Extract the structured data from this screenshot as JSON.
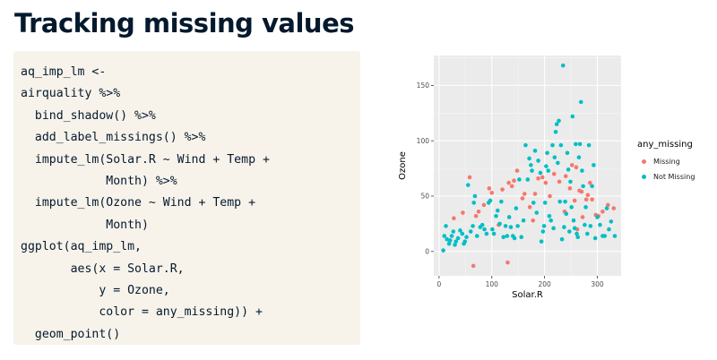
{
  "slide": {
    "title": "Tracking missing values"
  },
  "code": {
    "lines": [
      "aq_imp_lm <-",
      "airquality %>%",
      "  bind_shadow() %>%",
      "  add_label_missings() %>%",
      "  impute_lm(Solar.R ~ Wind + Temp +",
      "            Month) %>%",
      "  impute_lm(Ozone ~ Wind + Temp +",
      "            Month)",
      "ggplot(aq_imp_lm,",
      "       aes(x = Solar.R,",
      "           y = Ozone,",
      "           color = any_missing)) +",
      "  geom_point()"
    ]
  },
  "chart_data": {
    "type": "scatter",
    "xlabel": "Solar.R",
    "ylabel": "Ozone",
    "xlim": [
      -10,
      345
    ],
    "ylim": [
      -22,
      177
    ],
    "x_ticks": [
      0,
      100,
      200,
      300
    ],
    "y_ticks": [
      0,
      50,
      100,
      150
    ],
    "grid": true,
    "legend": {
      "title": "any_missing",
      "position": "right"
    },
    "series": [
      {
        "name": "Missing",
        "color": "#f8766d",
        "points": [
          [
            58,
            67
          ],
          [
            70,
            32
          ],
          [
            28,
            30
          ],
          [
            45,
            35
          ],
          [
            65,
            -13
          ],
          [
            75,
            36
          ],
          [
            85,
            42
          ],
          [
            95,
            57
          ],
          [
            100,
            53
          ],
          [
            113,
            24
          ],
          [
            120,
            56
          ],
          [
            132,
            62
          ],
          [
            130,
            -10
          ],
          [
            138,
            59
          ],
          [
            142,
            64
          ],
          [
            148,
            73
          ],
          [
            158,
            48
          ],
          [
            162,
            52
          ],
          [
            172,
            40
          ],
          [
            178,
            28
          ],
          [
            182,
            52
          ],
          [
            188,
            66
          ],
          [
            196,
            67
          ],
          [
            202,
            62
          ],
          [
            210,
            50
          ],
          [
            218,
            70
          ],
          [
            228,
            63
          ],
          [
            238,
            36
          ],
          [
            240,
            68
          ],
          [
            248,
            57
          ],
          [
            252,
            78
          ],
          [
            257,
            46
          ],
          [
            260,
            76
          ],
          [
            262,
            20
          ],
          [
            266,
            55
          ],
          [
            270,
            54
          ],
          [
            272,
            31
          ],
          [
            279,
            47
          ],
          [
            282,
            51
          ],
          [
            286,
            62
          ],
          [
            290,
            47
          ],
          [
            297,
            33
          ],
          [
            302,
            32
          ],
          [
            310,
            36
          ],
          [
            320,
            42
          ],
          [
            331,
            39
          ]
        ]
      },
      {
        "name": "Not Missing",
        "color": "#00bfc4",
        "points": [
          [
            8,
            1
          ],
          [
            10,
            14
          ],
          [
            13,
            23
          ],
          [
            15,
            11
          ],
          [
            19,
            7
          ],
          [
            21,
            10
          ],
          [
            24,
            14
          ],
          [
            27,
            18
          ],
          [
            30,
            6
          ],
          [
            32,
            9
          ],
          [
            36,
            12
          ],
          [
            40,
            19
          ],
          [
            44,
            16
          ],
          [
            47,
            7
          ],
          [
            49,
            9
          ],
          [
            52,
            13
          ],
          [
            55,
            60
          ],
          [
            60,
            18
          ],
          [
            64,
            23
          ],
          [
            66,
            44
          ],
          [
            68,
            50
          ],
          [
            72,
            14
          ],
          [
            78,
            22
          ],
          [
            82,
            24
          ],
          [
            86,
            20
          ],
          [
            90,
            16
          ],
          [
            94,
            44
          ],
          [
            97,
            46
          ],
          [
            101,
            20
          ],
          [
            104,
            16
          ],
          [
            108,
            32
          ],
          [
            111,
            37
          ],
          [
            115,
            25
          ],
          [
            118,
            45
          ],
          [
            122,
            13
          ],
          [
            126,
            23
          ],
          [
            129,
            14
          ],
          [
            133,
            31
          ],
          [
            136,
            22
          ],
          [
            140,
            14
          ],
          [
            143,
            12
          ],
          [
            146,
            39
          ],
          [
            149,
            23
          ],
          [
            152,
            65
          ],
          [
            156,
            13
          ],
          [
            160,
            28
          ],
          [
            164,
            96
          ],
          [
            168,
            65
          ],
          [
            171,
            84
          ],
          [
            174,
            78
          ],
          [
            176,
            73
          ],
          [
            179,
            44
          ],
          [
            182,
            91
          ],
          [
            185,
            35
          ],
          [
            188,
            82
          ],
          [
            192,
            71
          ],
          [
            194,
            9
          ],
          [
            197,
            18
          ],
          [
            199,
            23
          ],
          [
            201,
            44
          ],
          [
            203,
            77
          ],
          [
            205,
            89
          ],
          [
            207,
            73
          ],
          [
            209,
            32
          ],
          [
            212,
            28
          ],
          [
            215,
            96
          ],
          [
            217,
            21
          ],
          [
            219,
            85
          ],
          [
            221,
            108
          ],
          [
            223,
            115
          ],
          [
            225,
            80
          ],
          [
            227,
            118
          ],
          [
            229,
            45
          ],
          [
            231,
            96
          ],
          [
            233,
            11
          ],
          [
            235,
            168
          ],
          [
            237,
            22
          ],
          [
            239,
            45
          ],
          [
            241,
            34
          ],
          [
            243,
            89
          ],
          [
            245,
            74
          ],
          [
            247,
            18
          ],
          [
            249,
            63
          ],
          [
            251,
            40
          ],
          [
            253,
            122
          ],
          [
            255,
            28
          ],
          [
            257,
            21
          ],
          [
            259,
            97
          ],
          [
            261,
            16
          ],
          [
            263,
            13
          ],
          [
            265,
            85
          ],
          [
            267,
            97
          ],
          [
            269,
            135
          ],
          [
            271,
            73
          ],
          [
            273,
            59
          ],
          [
            276,
            24
          ],
          [
            278,
            40
          ],
          [
            281,
            16
          ],
          [
            284,
            96
          ],
          [
            287,
            23
          ],
          [
            290,
            59
          ],
          [
            293,
            78
          ],
          [
            296,
            12
          ],
          [
            300,
            31
          ],
          [
            305,
            24
          ],
          [
            310,
            14
          ],
          [
            314,
            14
          ],
          [
            318,
            39
          ],
          [
            322,
            20
          ],
          [
            326,
            27
          ],
          [
            333,
            14
          ]
        ]
      }
    ]
  }
}
